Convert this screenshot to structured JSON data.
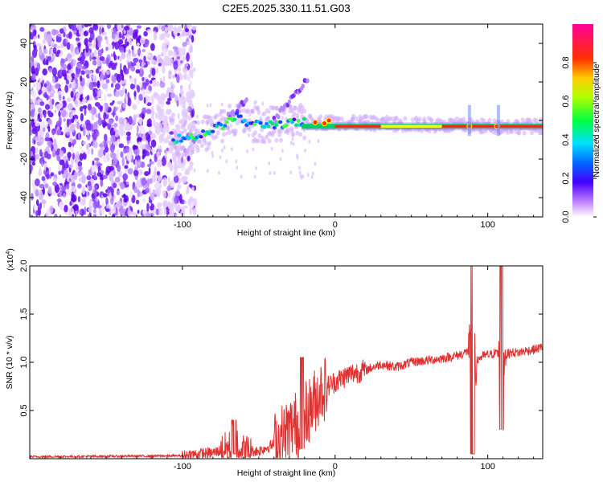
{
  "title": "C2E5.2025.330.11.51.G03",
  "chart_data": [
    {
      "type": "heatmap",
      "xlabel": "Height of straight line (km)",
      "ylabel": "Frequency (Hz)",
      "xlim": [
        -200,
        136
      ],
      "ylim": [
        -50,
        50
      ],
      "xticks": [
        -100,
        0,
        100
      ],
      "xtick_labels": [
        "-100",
        "0",
        "100"
      ],
      "yticks": [
        -40,
        -20,
        0,
        20,
        40
      ],
      "ytick_labels": [
        "-40",
        "-20",
        "0",
        "20",
        "40"
      ],
      "colorbar": {
        "label": "Normalized spectral amplitude",
        "range": [
          0,
          1
        ],
        "ticks": [
          0,
          0.2,
          0.4,
          0.6,
          0.8
        ],
        "tick_labels": [
          "0.0",
          "0.2",
          "0.4",
          "0.6",
          "0.8"
        ],
        "colors": [
          "#ffffff",
          "#8a00ff",
          "#0000ff",
          "#00ffff",
          "#00ff00",
          "#ffff00",
          "#ff8000",
          "#ff0000",
          "#ff00a0"
        ]
      },
      "features": {
        "noise_region_x": [
          -200,
          -100
        ],
        "ridge": [
          [
            -106,
            -10
          ],
          [
            -90,
            -8
          ],
          [
            -75,
            -3
          ],
          [
            -65,
            2
          ],
          [
            -55,
            -2
          ],
          [
            -40,
            -2
          ],
          [
            -20,
            -1
          ],
          [
            0,
            -1
          ],
          [
            50,
            -2
          ],
          [
            100,
            -3
          ],
          [
            136,
            -3
          ]
        ],
        "band_x": [
          -20,
          136
        ],
        "band_freq": -3
      }
    },
    {
      "type": "line",
      "xlabel": "Height of straight line (km)",
      "ylabel": "SNR (10 * v/v)",
      "multiplier_label": "(x10",
      "multiplier_exp": "4",
      "multiplier_close": ")",
      "xlim": [
        -200,
        136
      ],
      "ylim": [
        0,
        2.0
      ],
      "xticks": [
        -100,
        0,
        100
      ],
      "xtick_labels": [
        "-100",
        "0",
        "100"
      ],
      "yticks": [
        0.5,
        1.0,
        1.5,
        2.0
      ],
      "ytick_labels": [
        "0.5",
        "1.0",
        "1.5",
        "2.0"
      ],
      "color": "#e03030",
      "series_anchors": {
        "x": [
          -200,
          -100,
          -90,
          -80,
          -72,
          -65,
          -60,
          -50,
          -40,
          -30,
          -20,
          -15,
          -10,
          -5,
          0,
          10,
          20,
          30,
          40,
          50,
          60,
          70,
          80,
          85,
          88,
          92,
          95,
          98,
          102,
          105,
          108,
          112,
          115,
          120,
          125,
          130,
          136
        ],
        "y": [
          0.02,
          0.03,
          0.05,
          0.06,
          0.1,
          0.15,
          0.08,
          0.08,
          0.15,
          0.3,
          0.45,
          0.55,
          0.7,
          0.75,
          0.8,
          0.88,
          0.92,
          0.98,
          0.95,
          1.0,
          1.02,
          1.04,
          1.07,
          1.1,
          1.12,
          1.0,
          1.05,
          1.07,
          1.08,
          1.1,
          1.06,
          1.08,
          1.1,
          1.1,
          1.12,
          1.13,
          1.16
        ]
      },
      "spikes": [
        {
          "x": 90,
          "y_max": 2.0,
          "y_min": 0.05
        },
        {
          "x": 109,
          "y_max": 2.0,
          "y_min": 0.3
        },
        {
          "x": -66,
          "y_max": 0.4,
          "y_min": 0.05
        },
        {
          "x": -22,
          "y_max": 1.05,
          "y_min": 0.1
        }
      ]
    }
  ]
}
